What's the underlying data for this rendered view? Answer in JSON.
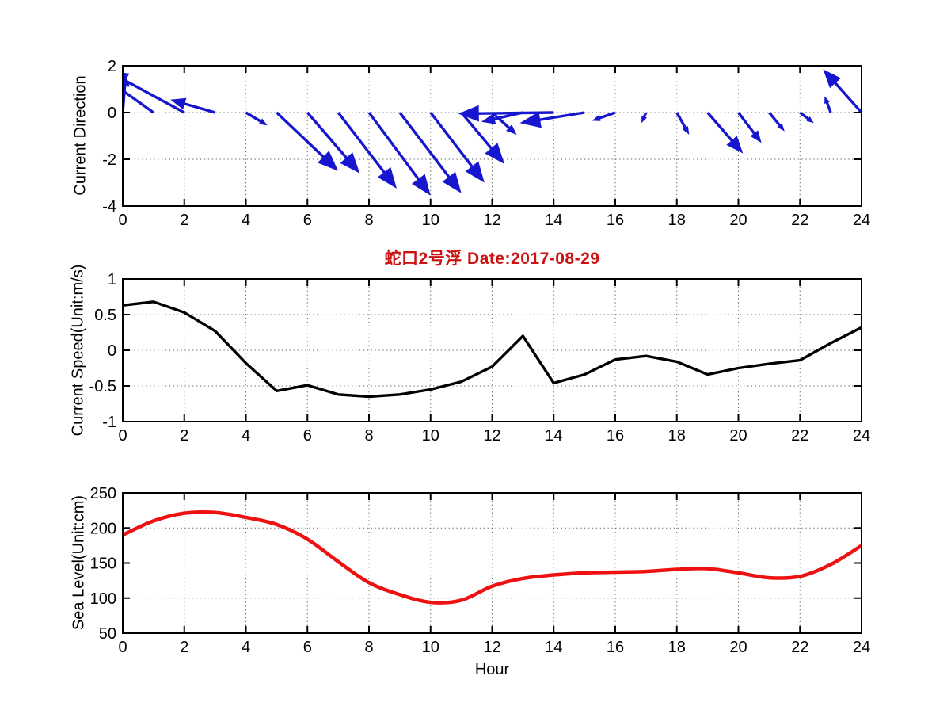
{
  "figure": {
    "background": "#ffffff",
    "title": "蛇口2号浮   Date:2017-08-29",
    "title_color": "#CC1111",
    "axis_color": "#000000",
    "grid_color": "#606060"
  },
  "chart_data": [
    {
      "type": "quiver",
      "name": "current-direction",
      "ylabel": "Current Direction",
      "xlim": [
        0,
        24
      ],
      "ylim": [
        -4,
        2
      ],
      "xticks": [
        0,
        2,
        4,
        6,
        8,
        10,
        12,
        14,
        16,
        18,
        20,
        22,
        24
      ],
      "yticks": [
        2,
        0,
        -2,
        -4
      ],
      "grid": true,
      "color": "#1616CE",
      "arrows": [
        {
          "hour": 0,
          "u": 0.1,
          "v": 1.65
        },
        {
          "hour": 1,
          "u": -1.6,
          "v": 1.5
        },
        {
          "hour": 2,
          "u": -2.5,
          "v": 1.78
        },
        {
          "hour": 3,
          "u": -1.45,
          "v": 0.55
        },
        {
          "hour": 4,
          "u": 0.7,
          "v": -0.55
        },
        {
          "hour": 5,
          "u": 2.0,
          "v": -2.5
        },
        {
          "hour": 6,
          "u": 1.7,
          "v": -2.6
        },
        {
          "hour": 7,
          "u": 1.9,
          "v": -3.25
        },
        {
          "hour": 8,
          "u": 2.0,
          "v": -3.55
        },
        {
          "hour": 9,
          "u": 2.0,
          "v": -3.45
        },
        {
          "hour": 10,
          "u": 1.75,
          "v": -3.0
        },
        {
          "hour": 11,
          "u": 1.4,
          "v": -2.2
        },
        {
          "hour": 12,
          "u": 0.8,
          "v": -0.95
        },
        {
          "hour": 13,
          "u": -1.35,
          "v": -0.4
        },
        {
          "hour": 14,
          "u": -3.1,
          "v": -0.05
        },
        {
          "hour": 15,
          "u": -2.1,
          "v": -0.45
        },
        {
          "hour": 16,
          "u": -0.75,
          "v": -0.35
        },
        {
          "hour": 17,
          "u": -0.15,
          "v": -0.45
        },
        {
          "hour": 18,
          "u": 0.4,
          "v": -0.95
        },
        {
          "hour": 19,
          "u": 1.15,
          "v": -1.75
        },
        {
          "hour": 20,
          "u": 0.75,
          "v": -1.3
        },
        {
          "hour": 21,
          "u": 0.5,
          "v": -0.8
        },
        {
          "hour": 22,
          "u": 0.45,
          "v": -0.45
        },
        {
          "hour": 23,
          "u": -0.2,
          "v": 0.7
        },
        {
          "hour": 24,
          "u": -1.25,
          "v": 1.85
        }
      ]
    },
    {
      "type": "line",
      "name": "current-speed",
      "title": "蛇口2号浮   Date:2017-08-29",
      "ylabel": "Current Speed(Unit:m/s)",
      "xlim": [
        0,
        24
      ],
      "ylim": [
        -1,
        1
      ],
      "xticks": [
        0,
        2,
        4,
        6,
        8,
        10,
        12,
        14,
        16,
        18,
        20,
        22,
        24
      ],
      "yticks": [
        1,
        0.5,
        0,
        -0.5,
        -1
      ],
      "grid": true,
      "color": "#000000",
      "x": [
        0,
        1,
        2,
        3,
        4,
        5,
        6,
        7,
        8,
        9,
        10,
        11,
        12,
        13,
        14,
        15,
        16,
        17,
        18,
        19,
        20,
        21,
        22,
        23,
        24
      ],
      "y": [
        0.63,
        0.68,
        0.53,
        0.27,
        -0.18,
        -0.57,
        -0.49,
        -0.62,
        -0.65,
        -0.62,
        -0.55,
        -0.44,
        -0.23,
        0.2,
        -0.46,
        -0.34,
        -0.13,
        -0.08,
        -0.16,
        -0.34,
        -0.25,
        -0.19,
        -0.14,
        0.1,
        0.32
      ]
    },
    {
      "type": "line",
      "name": "sea-level",
      "ylabel": "Sea Level(Unit:cm)",
      "xlabel": "Hour",
      "xlim": [
        0,
        24
      ],
      "ylim": [
        50,
        250
      ],
      "xticks": [
        0,
        2,
        4,
        6,
        8,
        10,
        12,
        14,
        16,
        18,
        20,
        22,
        24
      ],
      "yticks": [
        250,
        200,
        150,
        100,
        50
      ],
      "grid": true,
      "smooth": true,
      "color": "#EE1111",
      "x": [
        0,
        1,
        2,
        3,
        4,
        5,
        6,
        7,
        8,
        9,
        10,
        11,
        12,
        13,
        14,
        15,
        16,
        17,
        18,
        19,
        20,
        21,
        22,
        23,
        24
      ],
      "y": [
        190,
        210,
        221,
        222,
        215,
        205,
        184,
        152,
        122,
        105,
        94,
        97,
        117,
        128,
        133,
        136,
        137,
        138,
        141,
        142,
        136,
        129,
        131,
        148,
        175
      ]
    }
  ]
}
